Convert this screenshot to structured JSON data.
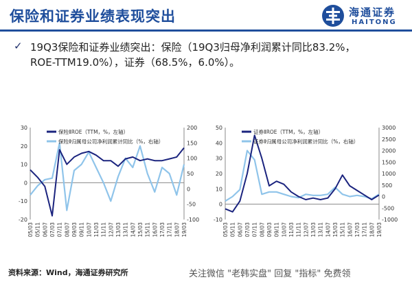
{
  "header": {
    "title": "保险和证券业绩表现突出",
    "logo_cn": "海通证券",
    "logo_en": "HAITONG",
    "logo_icon": "haitong-logo-icon",
    "brand_color": "#1f4e9c"
  },
  "body": {
    "bullet_icon": "check-icon",
    "bullet_glyph": "✓",
    "line1": "19Q3保险和证券业绩突出：保险（19Q3归母净利润累计同比83.2%，",
    "line2": "ROE-TTM19.0%），证券（68.5%，6.0%）。"
  },
  "footer": {
    "source": "资料来源：Wind，海通证券研究所",
    "watermark": "关注微信 \"老韩实盘\" 回复 \"指标\" 免费领"
  },
  "chart_data": [
    {
      "type": "line",
      "x": [
        "05/03",
        "05/11",
        "06/07",
        "07/03",
        "07/11",
        "08/07",
        "09/03",
        "09/11",
        "10/07",
        "11/03",
        "11/11",
        "12/07",
        "13/03",
        "13/11",
        "14/07",
        "15/03",
        "15/11",
        "16/07",
        "17/03",
        "17/11",
        "18/07",
        "19/03"
      ],
      "left_ylim": [
        -20,
        30
      ],
      "left_yticks": [
        "30",
        "20",
        "10",
        "0",
        "-10",
        "-20"
      ],
      "right_ylim": [
        -100,
        200
      ],
      "right_yticks": [
        "200",
        "150",
        "100",
        "50",
        "0",
        "-50",
        "-100"
      ],
      "series": [
        {
          "name": "保险ⅡROE（TTM，%，左轴）",
          "axis": "left",
          "color": "#1a237e",
          "values": [
            7,
            3,
            -2,
            -18,
            18,
            10,
            14,
            16,
            17,
            15,
            12,
            12,
            9,
            13,
            14,
            12,
            13,
            12,
            12,
            13,
            14,
            19
          ]
        },
        {
          "name": "保险Ⅱ归属母公司净利润累计同比（%，右轴）",
          "axis": "right",
          "color": "#8fc4ea",
          "values": [
            -20,
            10,
            30,
            35,
            150,
            -70,
            60,
            80,
            120,
            70,
            20,
            -40,
            40,
            100,
            70,
            140,
            50,
            -10,
            70,
            50,
            -20,
            80
          ]
        }
      ],
      "grid": false,
      "legend_position": "top"
    },
    {
      "type": "line",
      "x": [
        "05/03",
        "05/11",
        "06/07",
        "07/03",
        "07/11",
        "08/07",
        "09/03",
        "09/11",
        "10/07",
        "11/03",
        "11/11",
        "12/07",
        "13/03",
        "13/11",
        "14/07",
        "15/03",
        "15/11",
        "16/07",
        "17/03",
        "17/11",
        "18/07",
        "19/03"
      ],
      "left_ylim": [
        -10,
        50
      ],
      "left_yticks": [
        "50",
        "40",
        "30",
        "20",
        "10",
        "0",
        "-10"
      ],
      "right_ylim": [
        -1000,
        3000
      ],
      "right_yticks": [
        "3000",
        "2500",
        "2000",
        "1500",
        "1000",
        "500",
        "0",
        "-500",
        "-1000"
      ],
      "series": [
        {
          "name": "证券ⅡROE（TTM，%，左轴）",
          "axis": "left",
          "color": "#1a237e",
          "values": [
            -3,
            -5,
            2,
            20,
            45,
            30,
            12,
            15,
            13,
            8,
            5,
            3,
            4,
            3,
            4,
            10,
            19,
            12,
            9,
            6,
            3,
            6
          ]
        },
        {
          "name": "证券Ⅱ归属母公司净利润累计同比（%，右轴）",
          "axis": "right",
          "color": "#8fc4ea",
          "values": [
            -200,
            0,
            300,
            2000,
            1600,
            100,
            200,
            200,
            100,
            0,
            -50,
            100,
            50,
            50,
            100,
            400,
            100,
            0,
            50,
            0,
            -100,
            100
          ]
        }
      ],
      "grid": false,
      "legend_position": "top"
    }
  ]
}
